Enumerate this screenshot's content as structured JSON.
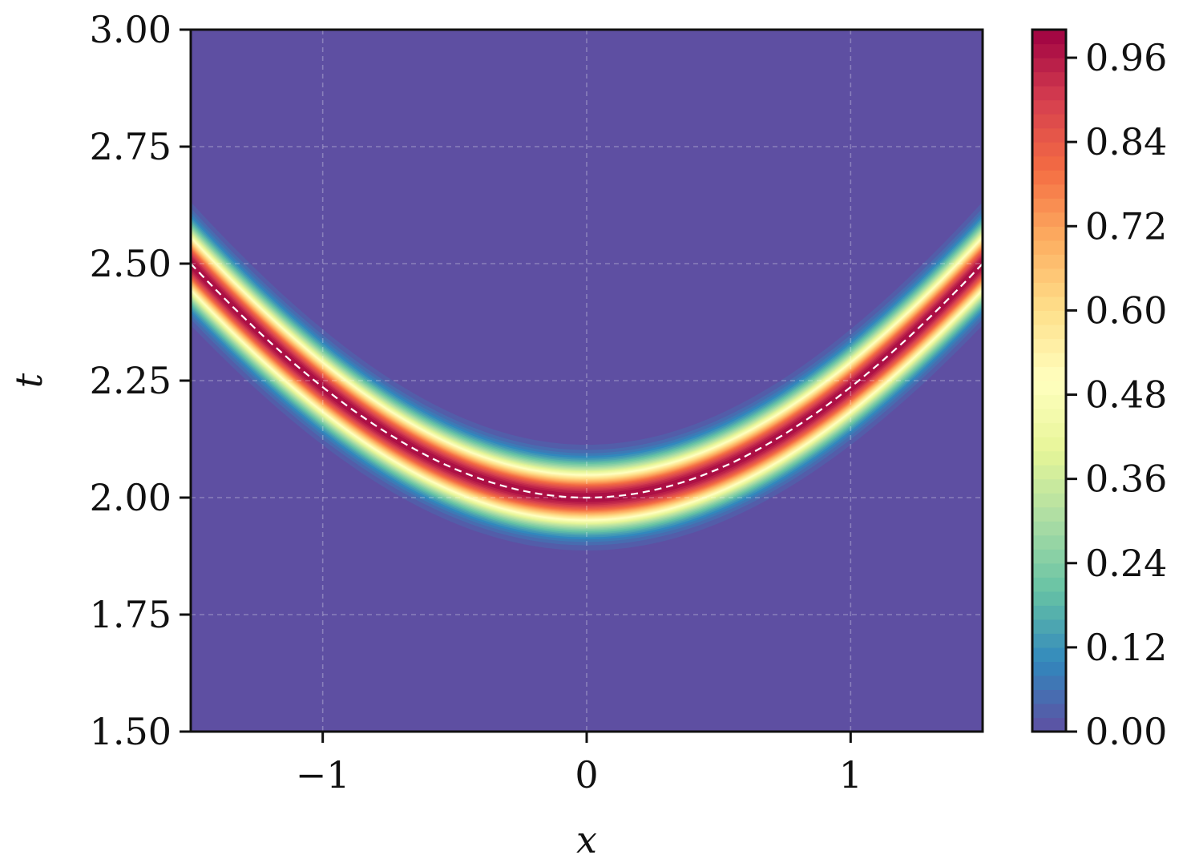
{
  "chart_data": {
    "type": "heatmap",
    "title": "",
    "xlabel": "x",
    "ylabel": "t",
    "xlim": [
      -1.5,
      1.5
    ],
    "ylim": [
      1.5,
      3.0
    ],
    "x_ticks": [
      -1,
      0,
      1
    ],
    "x_tick_labels": [
      "−1",
      "0",
      "1"
    ],
    "y_ticks": [
      1.5,
      1.75,
      2.0,
      2.25,
      2.5,
      2.75,
      3.0
    ],
    "y_tick_labels": [
      "1.50",
      "1.75",
      "2.00",
      "2.25",
      "2.50",
      "2.75",
      "3.00"
    ],
    "grid": true,
    "field": {
      "description_of_surface": "narrow band of value near 1 centred on the curve t = sqrt(4 + x^2), decaying to 0 away from it",
      "ridge_curve": "t = sqrt(4 + x^2)",
      "ridge_points": [
        {
          "x": -1.5,
          "t": 2.5
        },
        {
          "x": -1.0,
          "t": 2.236
        },
        {
          "x": -0.5,
          "t": 2.062
        },
        {
          "x": 0.0,
          "t": 2.0
        },
        {
          "x": 0.5,
          "t": 2.062
        },
        {
          "x": 1.0,
          "t": 2.236
        },
        {
          "x": 1.5,
          "t": 2.5
        }
      ],
      "band_halfwidth_t": 0.1,
      "max_value": 1.0,
      "min_value": 0.0
    },
    "overlay_line": {
      "style": "dashed",
      "color": "#ffffff"
    },
    "colorbar": {
      "colormap": "Spectral_r",
      "range": [
        0.0,
        1.0
      ],
      "ticks": [
        0.0,
        0.12,
        0.24,
        0.36,
        0.48,
        0.6,
        0.72,
        0.84,
        0.96
      ],
      "tick_labels": [
        "0.00",
        "0.12",
        "0.24",
        "0.36",
        "0.48",
        "0.60",
        "0.72",
        "0.84",
        "0.96"
      ]
    }
  }
}
